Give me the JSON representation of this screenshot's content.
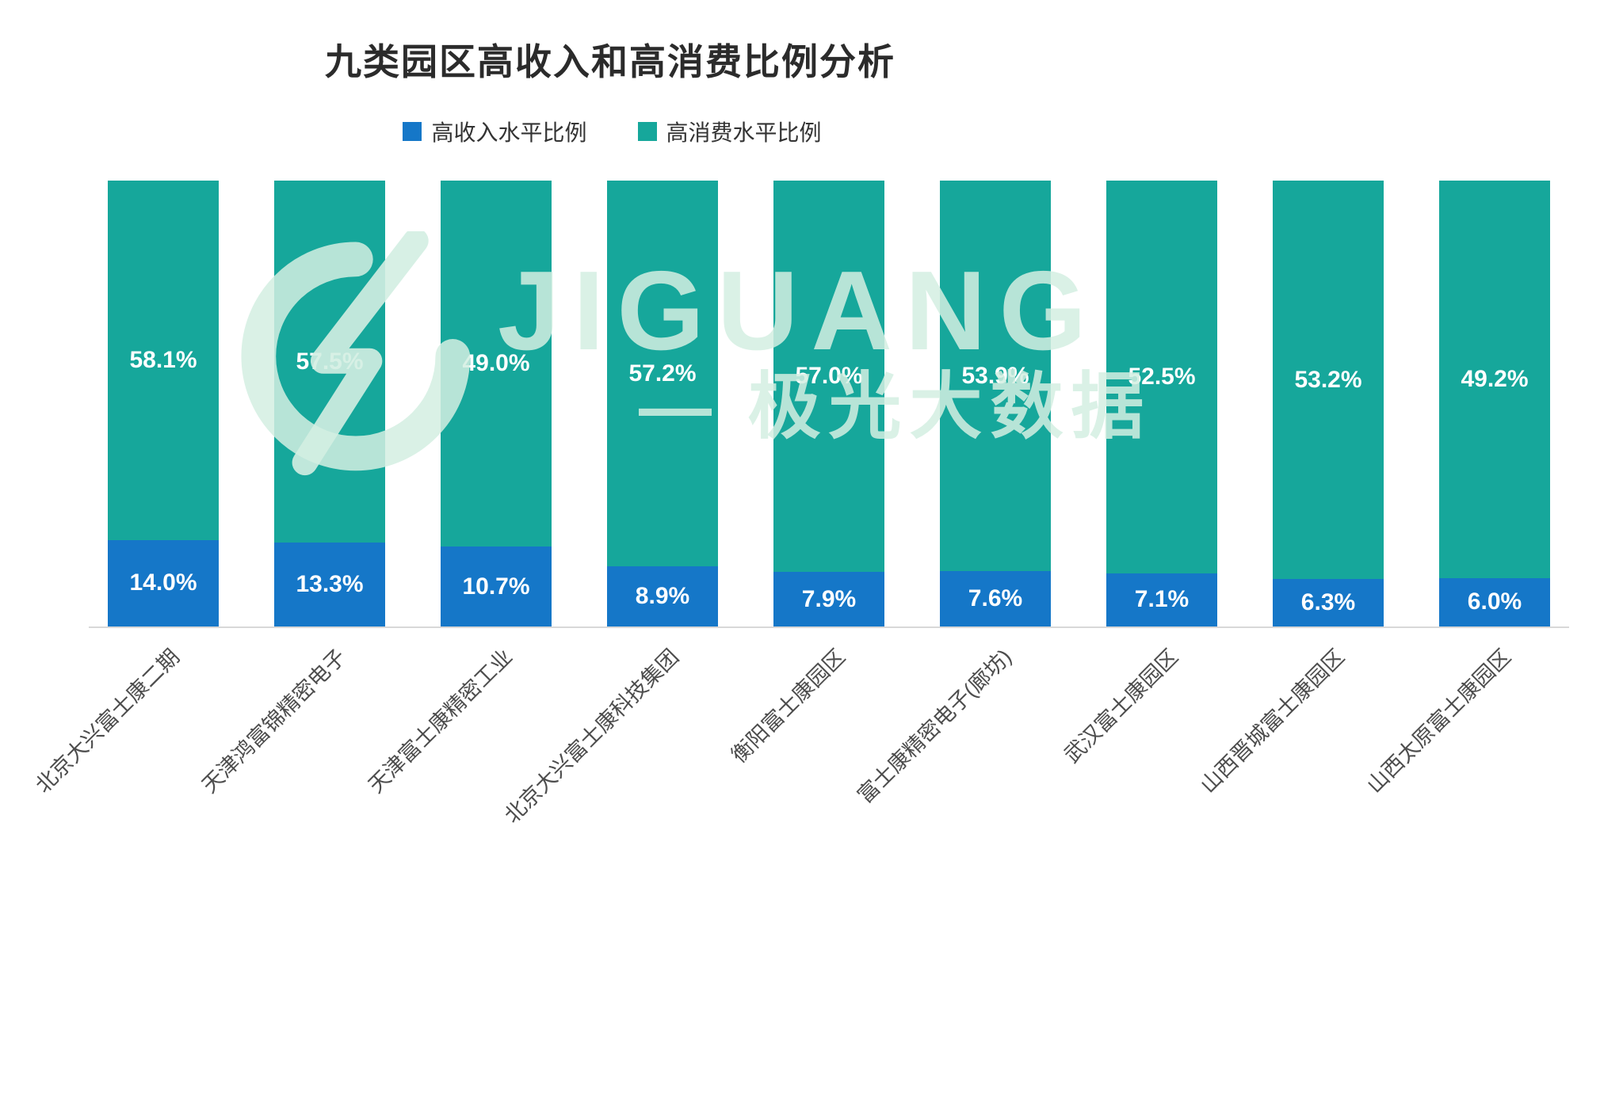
{
  "title": "九类园区高收入和高消费比例分析",
  "watermark": {
    "brand": "JIGUANG",
    "tagline": "— 极光大数据",
    "logo": "jiguang-swirl-logo",
    "color": "#D3EEE2"
  },
  "chart_data": {
    "type": "bar",
    "stacked": "normalized-full-height",
    "title": "九类园区高收入和高消费比例分析",
    "categories": [
      "北京大兴富士康二期",
      "天津鸿富锦精密电子",
      "天津富士康精密工业",
      "北京大兴富士康科技集团",
      "衡阳富士康园区",
      "富士康精密电子(廊坊)",
      "武汉富士康园区",
      "山西晋城富士康园区",
      "山西太原富士康园区"
    ],
    "series": [
      {
        "name": "高收入水平比例",
        "color": "#1577C8",
        "values": [
          14.0,
          13.3,
          10.7,
          8.9,
          7.9,
          7.6,
          7.1,
          6.3,
          6.0
        ]
      },
      {
        "name": "高消费水平比例",
        "color": "#16A79B",
        "values": [
          58.1,
          57.5,
          49.0,
          57.2,
          57.0,
          53.9,
          52.5,
          53.2,
          49.2
        ]
      }
    ],
    "value_suffix": "%",
    "value_decimals": 1,
    "legend_position": "top",
    "grid": false,
    "xlabel": "",
    "ylabel": ""
  }
}
